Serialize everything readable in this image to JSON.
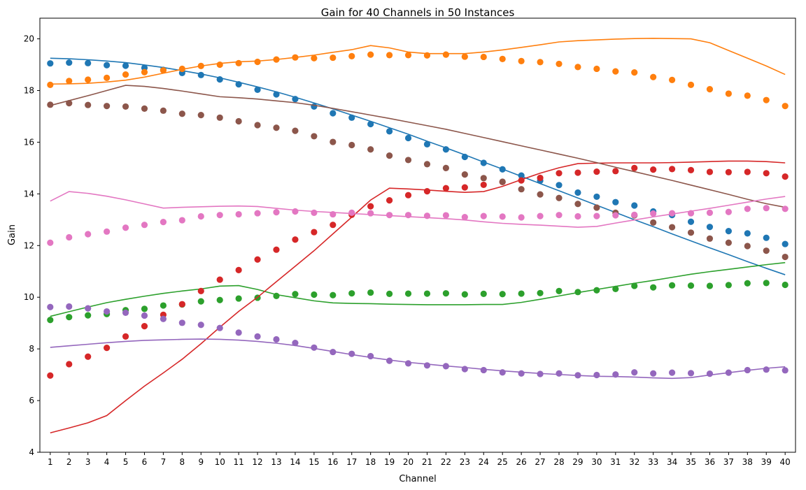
{
  "chart_data": {
    "type": "line",
    "title": "Gain for 40 Channels in 50 Instances",
    "xlabel": "Channel",
    "ylabel": "Gain",
    "x": [
      1,
      2,
      3,
      4,
      5,
      6,
      7,
      8,
      9,
      10,
      11,
      12,
      13,
      14,
      15,
      16,
      17,
      18,
      19,
      20,
      21,
      22,
      23,
      24,
      25,
      26,
      27,
      28,
      29,
      30,
      31,
      32,
      33,
      34,
      35,
      36,
      37,
      38,
      39,
      40
    ],
    "xticks": [
      "1",
      "2",
      "3",
      "4",
      "5",
      "6",
      "7",
      "8",
      "9",
      "10",
      "11",
      "12",
      "13",
      "14",
      "15",
      "16",
      "17",
      "18",
      "19",
      "20",
      "21",
      "22",
      "23",
      "24",
      "25",
      "26",
      "27",
      "28",
      "29",
      "30",
      "31",
      "32",
      "33",
      "34",
      "35",
      "36",
      "37",
      "38",
      "39",
      "40"
    ],
    "ylim": [
      4,
      20.8
    ],
    "yticks": [
      4,
      6,
      8,
      10,
      12,
      14,
      16,
      18,
      20
    ],
    "grid": false,
    "legend": "none",
    "series": [
      {
        "color": "#1f77b4",
        "line": [
          19.25,
          19.23,
          19.19,
          19.14,
          19.08,
          18.99,
          18.89,
          18.77,
          18.64,
          18.49,
          18.32,
          18.14,
          17.95,
          17.74,
          17.52,
          17.29,
          17.05,
          16.81,
          16.56,
          16.31,
          16.04,
          15.78,
          15.51,
          15.23,
          14.96,
          14.68,
          14.4,
          14.12,
          13.84,
          13.56,
          13.28,
          13.0,
          12.73,
          12.45,
          12.18,
          11.91,
          11.65,
          11.38,
          11.12,
          10.87
        ],
        "points": [
          19.05,
          19.08,
          19.06,
          18.98,
          18.96,
          18.88,
          18.8,
          18.68,
          18.6,
          18.43,
          18.24,
          18.03,
          17.85,
          17.67,
          17.38,
          17.12,
          16.95,
          16.7,
          16.42,
          16.16,
          15.92,
          15.72,
          15.43,
          15.2,
          14.95,
          14.71,
          14.51,
          14.34,
          14.05,
          13.89,
          13.68,
          13.55,
          13.32,
          13.18,
          12.92,
          12.72,
          12.56,
          12.47,
          12.3,
          12.06
        ]
      },
      {
        "color": "#ff7f0e",
        "line": [
          18.25,
          18.26,
          18.28,
          18.33,
          18.4,
          18.52,
          18.67,
          18.82,
          18.95,
          19.05,
          19.11,
          19.14,
          19.2,
          19.28,
          19.37,
          19.48,
          19.58,
          19.74,
          19.65,
          19.49,
          19.43,
          19.43,
          19.43,
          19.49,
          19.57,
          19.67,
          19.77,
          19.88,
          19.93,
          19.96,
          19.99,
          20.01,
          20.02,
          20.01,
          20.0,
          19.85,
          19.55,
          19.25,
          18.95,
          18.62
        ],
        "points": [
          18.22,
          18.37,
          18.42,
          18.49,
          18.62,
          18.71,
          18.78,
          18.84,
          18.95,
          19.0,
          19.06,
          19.11,
          19.2,
          19.28,
          19.25,
          19.27,
          19.33,
          19.39,
          19.37,
          19.37,
          19.36,
          19.39,
          19.31,
          19.3,
          19.22,
          19.14,
          19.1,
          19.03,
          18.91,
          18.84,
          18.74,
          18.7,
          18.52,
          18.41,
          18.22,
          18.05,
          17.88,
          17.8,
          17.63,
          17.4
        ]
      },
      {
        "color": "#2ca02c",
        "line": [
          9.26,
          9.44,
          9.62,
          9.79,
          9.92,
          10.04,
          10.15,
          10.24,
          10.32,
          10.43,
          10.45,
          10.3,
          10.1,
          9.98,
          9.86,
          9.78,
          9.76,
          9.75,
          9.73,
          9.72,
          9.71,
          9.71,
          9.71,
          9.72,
          9.72,
          9.8,
          9.92,
          10.05,
          10.18,
          10.3,
          10.42,
          10.54,
          10.65,
          10.77,
          10.89,
          10.99,
          11.08,
          11.17,
          11.26,
          11.34
        ],
        "points": [
          9.12,
          9.23,
          9.3,
          9.35,
          9.5,
          9.55,
          9.68,
          9.72,
          9.84,
          9.89,
          9.95,
          9.98,
          10.05,
          10.12,
          10.1,
          10.08,
          10.15,
          10.18,
          10.13,
          10.14,
          10.14,
          10.15,
          10.11,
          10.13,
          10.12,
          10.14,
          10.16,
          10.24,
          10.2,
          10.27,
          10.32,
          10.44,
          10.38,
          10.46,
          10.45,
          10.44,
          10.47,
          10.54,
          10.55,
          10.48
        ]
      },
      {
        "color": "#d62728",
        "line": [
          4.75,
          4.94,
          5.14,
          5.42,
          6.0,
          6.56,
          7.07,
          7.6,
          8.2,
          8.84,
          9.45,
          10.0,
          10.6,
          11.2,
          11.8,
          12.45,
          13.1,
          13.76,
          14.22,
          14.19,
          14.15,
          14.1,
          14.06,
          14.09,
          14.29,
          14.55,
          14.8,
          15.01,
          15.17,
          15.19,
          15.2,
          15.2,
          15.2,
          15.21,
          15.23,
          15.25,
          15.27,
          15.27,
          15.25,
          15.2
        ],
        "points": [
          6.97,
          7.41,
          7.7,
          8.04,
          8.48,
          8.88,
          9.32,
          9.73,
          10.24,
          10.68,
          11.05,
          11.46,
          11.84,
          12.23,
          12.52,
          12.8,
          13.19,
          13.52,
          13.75,
          13.95,
          14.1,
          14.22,
          14.25,
          14.35,
          14.46,
          14.52,
          14.62,
          14.8,
          14.82,
          14.86,
          14.88,
          15.0,
          14.94,
          14.96,
          14.92,
          14.85,
          14.84,
          14.85,
          14.8,
          14.67
        ]
      },
      {
        "color": "#9467bd",
        "line": [
          8.06,
          8.12,
          8.18,
          8.24,
          8.29,
          8.33,
          8.35,
          8.37,
          8.38,
          8.37,
          8.34,
          8.29,
          8.22,
          8.13,
          8.02,
          7.9,
          7.78,
          7.67,
          7.57,
          7.48,
          7.41,
          7.34,
          7.28,
          7.21,
          7.15,
          7.1,
          7.05,
          7.01,
          6.97,
          6.94,
          6.93,
          6.91,
          6.88,
          6.86,
          6.89,
          6.99,
          7.08,
          7.17,
          7.25,
          7.31
        ],
        "points": [
          9.62,
          9.64,
          9.57,
          9.45,
          9.4,
          9.29,
          9.16,
          9.01,
          8.93,
          8.81,
          8.63,
          8.48,
          8.37,
          8.23,
          8.05,
          7.88,
          7.81,
          7.72,
          7.54,
          7.44,
          7.36,
          7.33,
          7.22,
          7.18,
          7.09,
          7.05,
          7.03,
          7.05,
          6.98,
          6.99,
          7.01,
          7.09,
          7.05,
          7.08,
          7.06,
          7.04,
          7.08,
          7.18,
          7.2,
          7.17
        ]
      },
      {
        "color": "#8c564b",
        "line": [
          17.42,
          17.61,
          17.8,
          18.0,
          18.2,
          18.16,
          18.08,
          17.98,
          17.87,
          17.76,
          17.72,
          17.67,
          17.6,
          17.53,
          17.43,
          17.31,
          17.18,
          17.05,
          16.92,
          16.78,
          16.64,
          16.5,
          16.34,
          16.18,
          16.02,
          15.86,
          15.7,
          15.54,
          15.38,
          15.21,
          15.03,
          14.86,
          14.69,
          14.52,
          14.34,
          14.16,
          13.98,
          13.79,
          13.62,
          13.48
        ],
        "points": [
          17.45,
          17.51,
          17.44,
          17.4,
          17.38,
          17.3,
          17.22,
          17.1,
          17.05,
          16.95,
          16.81,
          16.66,
          16.56,
          16.44,
          16.23,
          16.01,
          15.89,
          15.72,
          15.48,
          15.31,
          15.15,
          15.0,
          14.75,
          14.61,
          14.47,
          14.18,
          13.98,
          13.84,
          13.61,
          13.47,
          13.27,
          13.17,
          12.89,
          12.71,
          12.5,
          12.27,
          12.11,
          11.98,
          11.8,
          11.56
        ]
      },
      {
        "color": "#e377c2",
        "line": [
          13.72,
          14.09,
          14.02,
          13.91,
          13.77,
          13.61,
          13.45,
          13.48,
          13.5,
          13.52,
          13.53,
          13.51,
          13.44,
          13.37,
          13.32,
          13.28,
          13.24,
          13.2,
          13.16,
          13.12,
          13.08,
          13.04,
          12.99,
          12.92,
          12.86,
          12.82,
          12.79,
          12.75,
          12.71,
          12.74,
          12.87,
          12.99,
          13.11,
          13.22,
          13.33,
          13.44,
          13.56,
          13.68,
          13.8,
          13.9
        ],
        "points": [
          12.11,
          12.32,
          12.44,
          12.54,
          12.69,
          12.8,
          12.91,
          12.98,
          13.13,
          13.18,
          13.21,
          13.25,
          13.29,
          13.32,
          13.27,
          13.21,
          13.27,
          13.25,
          13.18,
          13.18,
          13.15,
          13.17,
          13.1,
          13.14,
          13.12,
          13.09,
          13.14,
          13.18,
          13.13,
          13.14,
          13.17,
          13.19,
          13.24,
          13.25,
          13.25,
          13.27,
          13.3,
          13.42,
          13.45,
          13.42
        ]
      }
    ]
  }
}
